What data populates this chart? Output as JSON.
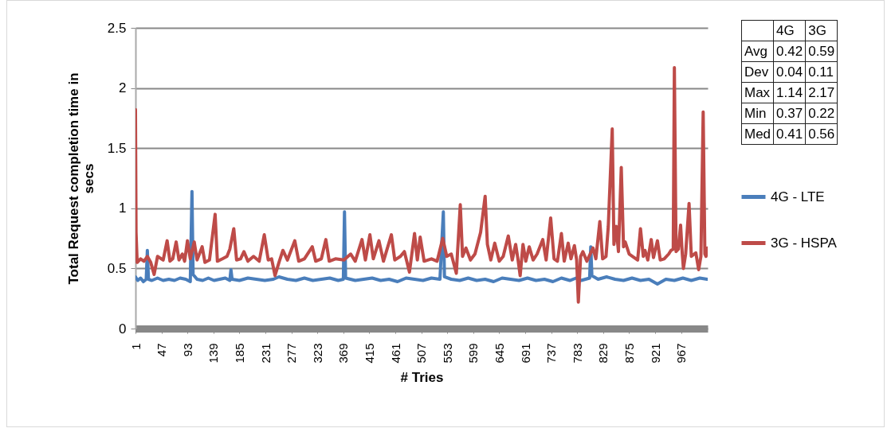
{
  "chart_data": {
    "type": "line",
    "xlabel": "# Tries",
    "ylabel": "Total Request completion time in secs",
    "xlim": [
      1,
      1014
    ],
    "xticks": [
      1,
      47,
      93,
      139,
      185,
      231,
      277,
      323,
      369,
      415,
      461,
      507,
      553,
      599,
      645,
      691,
      737,
      783,
      829,
      875,
      921,
      967
    ],
    "ylim": [
      0,
      2.5
    ],
    "yticks": [
      0,
      0.5,
      1,
      1.5,
      2,
      2.5
    ],
    "grid": "y",
    "legend": "right",
    "line_style": "solid",
    "annotations": [
      "4G",
      "3G",
      "Avg",
      "0.42",
      "0.59",
      "Dev",
      "0.04",
      "0.11",
      "Max",
      "1.14",
      "2.17",
      "Min",
      "0.37",
      "0.22",
      "Med",
      "0.41",
      "0.56"
    ],
    "series": [
      {
        "name": "4G - LTE",
        "color": "#4a7ebb",
        "x": [
          1,
          5,
          10,
          15,
          20,
          22,
          24,
          30,
          40,
          50,
          60,
          70,
          80,
          90,
          98,
          101,
          103,
          110,
          120,
          130,
          140,
          150,
          160,
          168,
          170,
          172,
          185,
          200,
          215,
          230,
          245,
          255,
          270,
          285,
          300,
          315,
          330,
          345,
          360,
          369,
          371,
          373,
          390,
          405,
          420,
          435,
          450,
          465,
          480,
          495,
          510,
          525,
          540,
          546,
          548,
          560,
          575,
          590,
          605,
          620,
          635,
          650,
          665,
          680,
          695,
          710,
          725,
          740,
          755,
          770,
          781,
          790,
          805,
          807,
          809,
          820,
          835,
          850,
          865,
          880,
          895,
          910,
          925,
          940,
          955,
          970,
          985,
          1000,
          1013
        ],
        "values": [
          0.43,
          0.4,
          0.42,
          0.39,
          0.41,
          0.65,
          0.41,
          0.4,
          0.42,
          0.4,
          0.41,
          0.4,
          0.42,
          0.41,
          0.39,
          1.14,
          0.45,
          0.41,
          0.4,
          0.42,
          0.4,
          0.41,
          0.42,
          0.4,
          0.49,
          0.41,
          0.4,
          0.42,
          0.41,
          0.4,
          0.41,
          0.43,
          0.41,
          0.4,
          0.42,
          0.4,
          0.41,
          0.42,
          0.4,
          0.41,
          0.97,
          0.42,
          0.4,
          0.41,
          0.42,
          0.4,
          0.41,
          0.39,
          0.42,
          0.41,
          0.4,
          0.42,
          0.41,
          0.97,
          0.43,
          0.41,
          0.4,
          0.42,
          0.4,
          0.41,
          0.39,
          0.42,
          0.41,
          0.4,
          0.42,
          0.4,
          0.41,
          0.39,
          0.42,
          0.4,
          0.42,
          0.4,
          0.42,
          0.68,
          0.44,
          0.41,
          0.43,
          0.41,
          0.4,
          0.42,
          0.4,
          0.41,
          0.37,
          0.41,
          0.4,
          0.42,
          0.4,
          0.42,
          0.41
        ]
      },
      {
        "name": "3G - HSPA",
        "color": "#be4b48",
        "x": [
          1,
          2,
          4,
          10,
          16,
          22,
          28,
          34,
          40,
          50,
          57,
          62,
          67,
          73,
          78,
          84,
          88,
          93,
          98,
          105,
          110,
          119,
          124,
          132,
          142,
          146,
          155,
          163,
          168,
          175,
          180,
          187,
          193,
          200,
          210,
          220,
          229,
          236,
          242,
          248,
          255,
          262,
          270,
          283,
          290,
          300,
          314,
          320,
          330,
          338,
          344,
          355,
          370,
          382,
          390,
          402,
          408,
          416,
          422,
          432,
          440,
          454,
          460,
          470,
          477,
          486,
          495,
          500,
          505,
          512,
          525,
          535,
          545,
          552,
          560,
          569,
          576,
          580,
          586,
          594,
          602,
          612,
          620,
          624,
          630,
          637,
          645,
          652,
          661,
          668,
          674,
          678,
          682,
          687,
          692,
          698,
          705,
          712,
          722,
          728,
          736,
          742,
          748,
          755,
          760,
          767,
          772,
          778,
          782,
          785,
          789,
          793,
          800,
          811,
          816,
          823,
          828,
          834,
          838,
          845,
          848,
          852,
          856,
          861,
          865,
          868,
          875,
          884,
          890,
          895,
          900,
          903,
          908,
          914,
          918,
          925,
          930,
          937,
          945,
          949,
          953,
          955,
          958,
          962,
          966,
          969,
          971,
          975,
          981,
          985,
          993,
          998,
          1002,
          1006,
          1009,
          1011,
          1013
        ],
        "values": [
          1.82,
          0.8,
          0.55,
          0.58,
          0.56,
          0.6,
          0.55,
          0.45,
          0.6,
          0.57,
          0.73,
          0.56,
          0.58,
          0.72,
          0.57,
          0.62,
          0.56,
          0.73,
          0.58,
          0.72,
          0.57,
          0.68,
          0.55,
          0.57,
          0.95,
          0.56,
          0.58,
          0.6,
          0.66,
          0.83,
          0.57,
          0.58,
          0.64,
          0.56,
          0.6,
          0.56,
          0.78,
          0.57,
          0.58,
          0.44,
          0.55,
          0.65,
          0.57,
          0.73,
          0.56,
          0.58,
          0.68,
          0.56,
          0.58,
          0.74,
          0.56,
          0.58,
          0.57,
          0.62,
          0.56,
          0.74,
          0.57,
          0.78,
          0.58,
          0.73,
          0.56,
          0.78,
          0.57,
          0.6,
          0.64,
          0.47,
          0.79,
          0.57,
          0.76,
          0.56,
          0.58,
          0.56,
          0.75,
          0.6,
          0.62,
          0.46,
          1.03,
          0.6,
          0.67,
          0.57,
          0.62,
          0.8,
          1.1,
          0.7,
          0.57,
          0.71,
          0.56,
          0.6,
          0.77,
          0.57,
          0.7,
          0.58,
          0.44,
          0.7,
          0.56,
          0.68,
          0.57,
          0.62,
          0.74,
          0.57,
          0.92,
          0.58,
          0.56,
          0.79,
          0.56,
          0.71,
          0.58,
          0.69,
          0.57,
          0.22,
          0.6,
          0.64,
          0.56,
          0.67,
          0.58,
          0.89,
          0.58,
          0.6,
          0.85,
          1.66,
          0.7,
          0.85,
          0.64,
          1.34,
          0.68,
          0.72,
          0.62,
          0.59,
          0.57,
          0.83,
          0.6,
          0.65,
          0.57,
          0.74,
          0.59,
          0.73,
          0.57,
          0.58,
          0.62,
          0.65,
          0.66,
          2.17,
          0.64,
          0.66,
          0.86,
          0.62,
          0.5,
          0.62,
          1.04,
          0.6,
          0.63,
          0.49,
          0.6,
          1.8,
          0.62,
          0.6,
          0.67
        ]
      }
    ]
  }
}
